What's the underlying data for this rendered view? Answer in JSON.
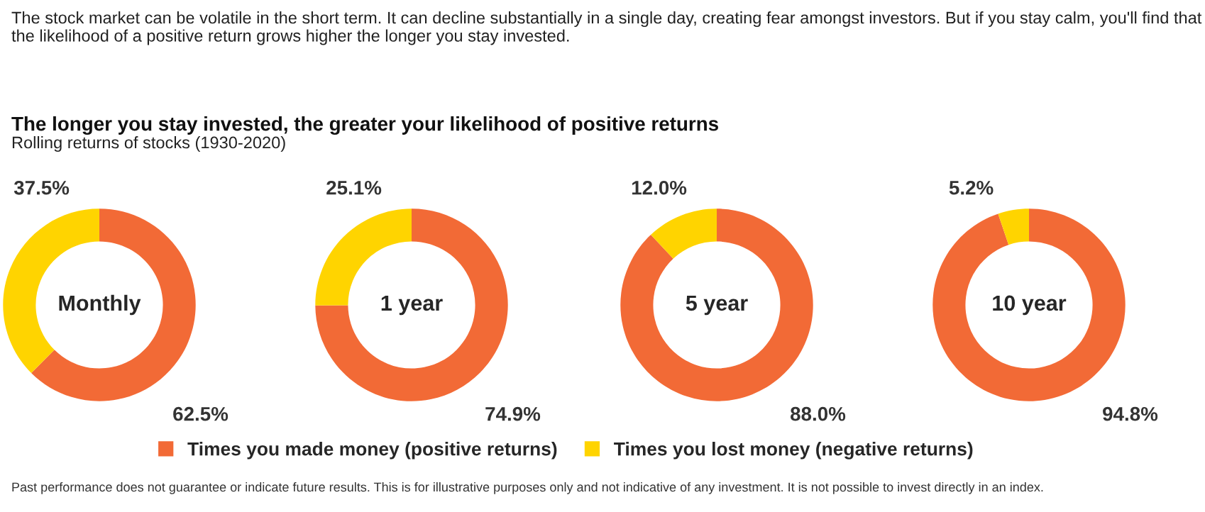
{
  "chart_data": [
    {
      "type": "other",
      "title": "The longer you stay invested, the greater your likelihood of positive returns",
      "subtitle": "Rolling returns of stocks (1930-2020)",
      "annotations": [
        "The stock market can be volatile in the short term. It can decline substantially in a single day, creating fear amongst investors. But if you stay calm, you'll find that the likelihood of a positive return grows higher the longer you stay invested.",
        "Past performance does not guarantee or indicate future results. This is for illustrative purposes only and not indicative of any investment. It is not possible to invest directly in an index."
      ]
    },
    {
      "type": "donut",
      "title": "Monthly",
      "categories": [
        "Times you made money (positive returns)",
        "Times you lost money (negative returns)"
      ],
      "values": [
        62.5,
        37.5
      ],
      "value_labels": [
        "62.5%",
        "37.5%"
      ],
      "colors": [
        "#f26a36",
        "#ffd400"
      ],
      "legend": "bottom"
    },
    {
      "type": "donut",
      "title": "1 year",
      "categories": [
        null,
        null
      ],
      "values": [
        74.9,
        25.1
      ],
      "value_labels": [
        "74.9%",
        "25.1%"
      ],
      "colors": [
        "#f26a36",
        "#ffd400"
      ]
    },
    {
      "type": "donut",
      "title": "5 year",
      "categories": [
        null,
        null
      ],
      "values": [
        88.0,
        12.0
      ],
      "value_labels": [
        "88.0%",
        "12.0%"
      ],
      "colors": [
        "#f26a36",
        "#ffd400"
      ]
    },
    {
      "type": "donut",
      "title": "10 year",
      "categories": [
        null,
        null
      ],
      "values": [
        94.8,
        5.2
      ],
      "value_labels": [
        "94.8%",
        "5.2%"
      ],
      "colors": [
        "#f26a36",
        "#ffd400"
      ]
    }
  ]
}
